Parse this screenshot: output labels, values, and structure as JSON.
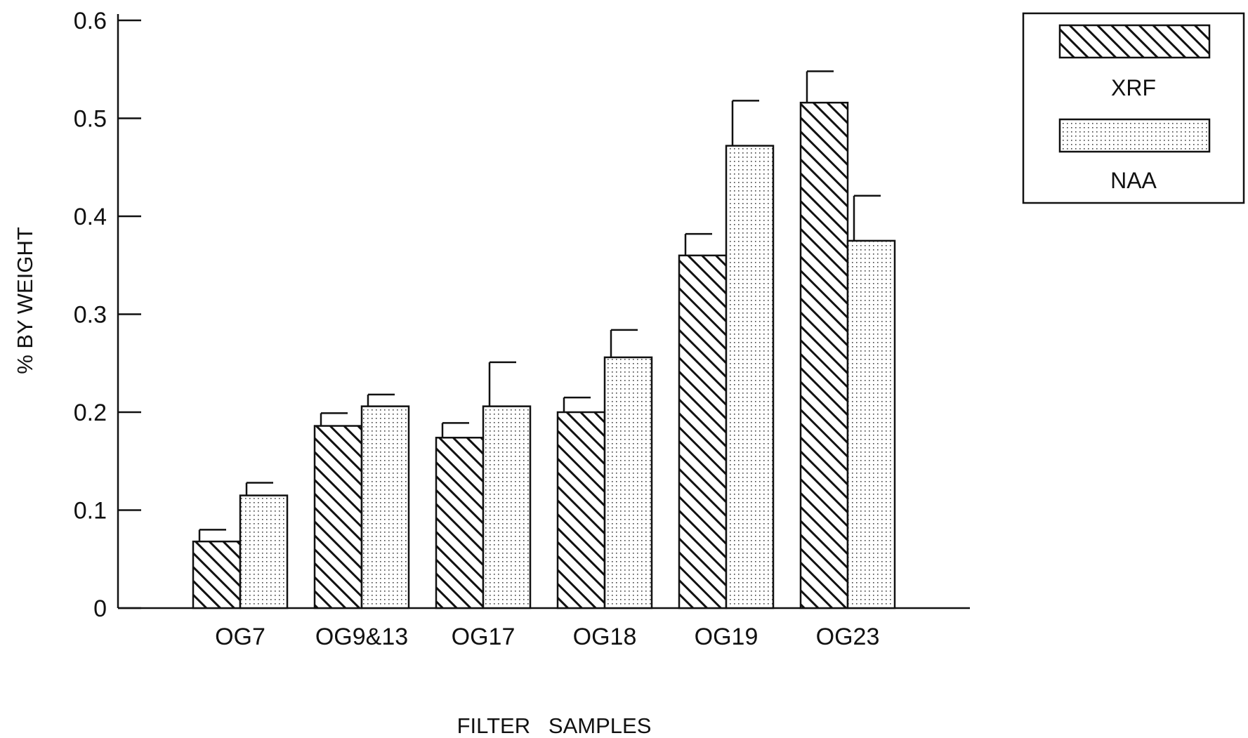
{
  "chart_data": {
    "type": "bar",
    "categories": [
      "OG7",
      "OG9&13",
      "OG17",
      "OG18",
      "OG19",
      "OG23"
    ],
    "series": [
      {
        "name": "XRF",
        "values": [
          0.068,
          0.186,
          0.174,
          0.2,
          0.36,
          0.516
        ],
        "errors": [
          0.012,
          0.013,
          0.015,
          0.015,
          0.022,
          0.032
        ],
        "pattern": "diagonal-hatch"
      },
      {
        "name": "NAA",
        "values": [
          0.115,
          0.206,
          0.206,
          0.256,
          0.472,
          0.375
        ],
        "errors": [
          0.013,
          0.012,
          0.045,
          0.028,
          0.046,
          0.046
        ],
        "pattern": "dotted"
      }
    ],
    "title": "",
    "xlabel": "FILTER   SAMPLES",
    "ylabel": "% BY WEIGHT",
    "ylim": [
      0,
      0.6
    ],
    "yticks": [
      "0",
      "0.1",
      "0.2",
      "0.3",
      "0.4",
      "0.5",
      "0.6"
    ],
    "grid": false,
    "legend": "top-right",
    "colors": {
      "ink": "#111111",
      "background": "#ffffff"
    }
  }
}
